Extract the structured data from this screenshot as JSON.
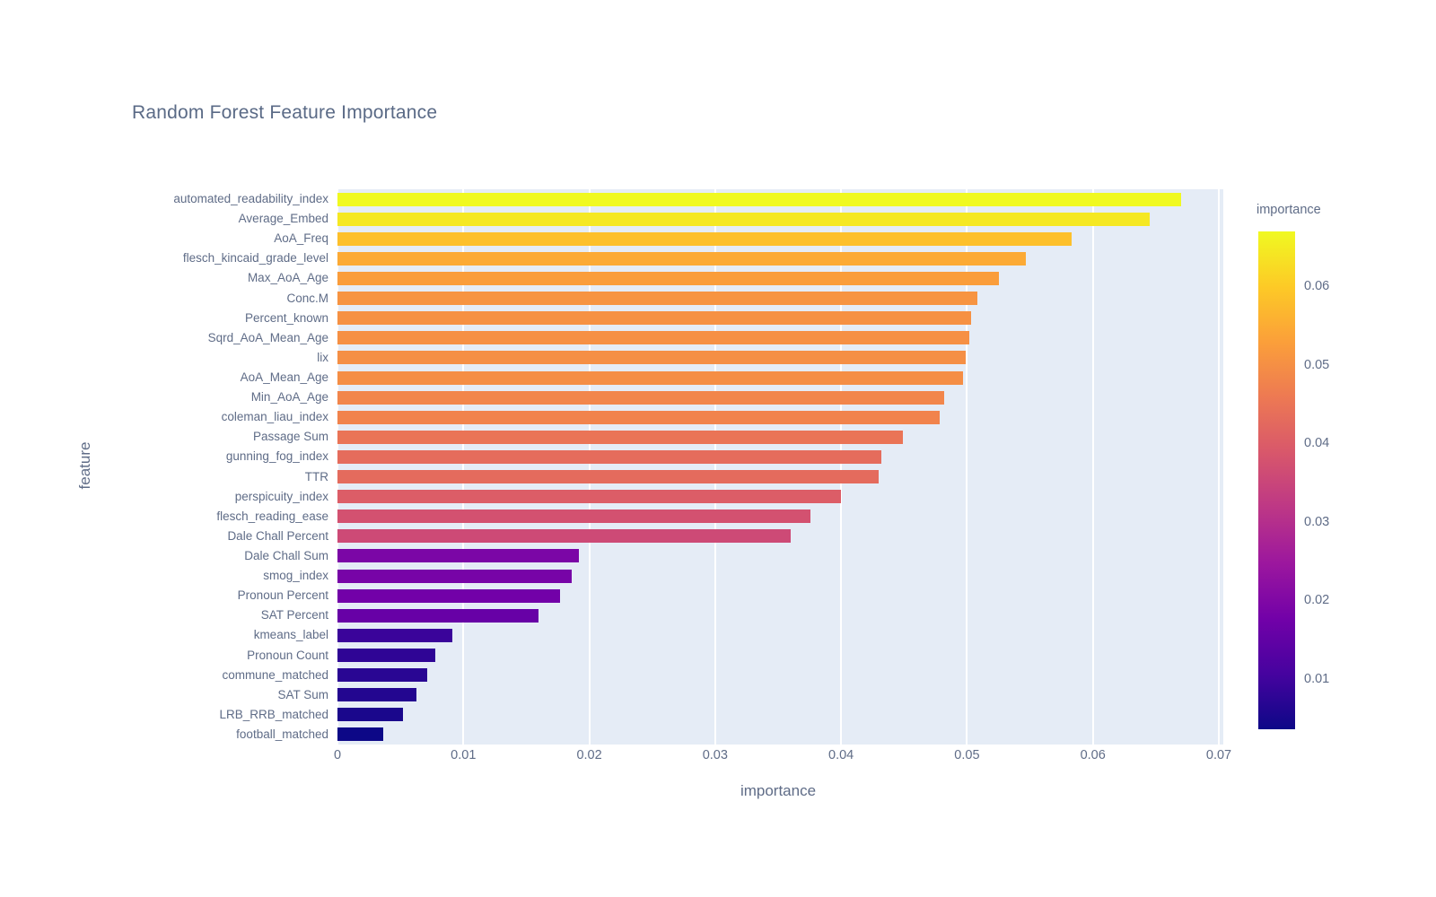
{
  "chart_data": {
    "type": "bar",
    "orientation": "horizontal",
    "title": "Random Forest Feature Importance",
    "xlabel": "importance",
    "ylabel": "feature",
    "xlim": [
      0,
      0.07
    ],
    "grid": true,
    "legend_position": "right-colorbar",
    "categories": [
      "automated_readability_index",
      "Average_Embed",
      "AoA_Freq",
      "flesch_kincaid_grade_level",
      "Max_AoA_Age",
      "Conc.M",
      "Percent_known",
      "Sqrd_AoA_Mean_Age",
      "lix",
      "AoA_Mean_Age",
      "Min_AoA_Age",
      "coleman_liau_index",
      "Passage Sum",
      "gunning_fog_index",
      "TTR",
      "perspicuity_index",
      "flesch_reading_ease",
      "Dale Chall Percent",
      "Dale Chall Sum",
      "smog_index",
      "Pronoun Percent",
      "SAT Percent",
      "kmeans_label",
      "Pronoun Count",
      "commune_matched",
      "SAT Sum",
      "LRB_RRB_matched",
      "football_matched"
    ],
    "values": [
      0.067,
      0.0645,
      0.0583,
      0.0547,
      0.0525,
      0.0508,
      0.0503,
      0.0502,
      0.0499,
      0.0497,
      0.0482,
      0.0478,
      0.0449,
      0.0432,
      0.043,
      0.04,
      0.0376,
      0.036,
      0.0192,
      0.0186,
      0.0177,
      0.016,
      0.0091,
      0.0078,
      0.0071,
      0.0063,
      0.0052,
      0.0036
    ],
    "x_ticks": [
      0,
      0.01,
      0.02,
      0.03,
      0.04,
      0.05,
      0.06,
      0.07
    ],
    "x_tick_labels": [
      "0",
      "0.01",
      "0.02",
      "0.03",
      "0.04",
      "0.05",
      "0.06",
      "0.07"
    ],
    "colorbar": {
      "title": "importance",
      "tick_values": [
        0.06,
        0.05,
        0.04,
        0.03,
        0.02,
        0.01
      ],
      "tick_labels": [
        "0.06",
        "0.05",
        "0.04",
        "0.03",
        "0.02",
        "0.01"
      ],
      "range": [
        0.0036,
        0.067
      ]
    },
    "colorscale_name": "plasma",
    "colorscale": [
      [
        0.0,
        "#0d0887"
      ],
      [
        0.1111,
        "#46039f"
      ],
      [
        0.2222,
        "#7201a8"
      ],
      [
        0.3333,
        "#9c179e"
      ],
      [
        0.4444,
        "#bd3786"
      ],
      [
        0.5556,
        "#d8576b"
      ],
      [
        0.6667,
        "#ed7953"
      ],
      [
        0.7778,
        "#fb9f3a"
      ],
      [
        0.8889,
        "#fdca26"
      ],
      [
        1.0,
        "#f0f921"
      ]
    ],
    "colors": {
      "plot_background": "#e5ecf6",
      "gridline": "#ffffff",
      "page_background": "#ffffff",
      "text": "#5f6c87",
      "title_text": "#5a6a86"
    }
  }
}
